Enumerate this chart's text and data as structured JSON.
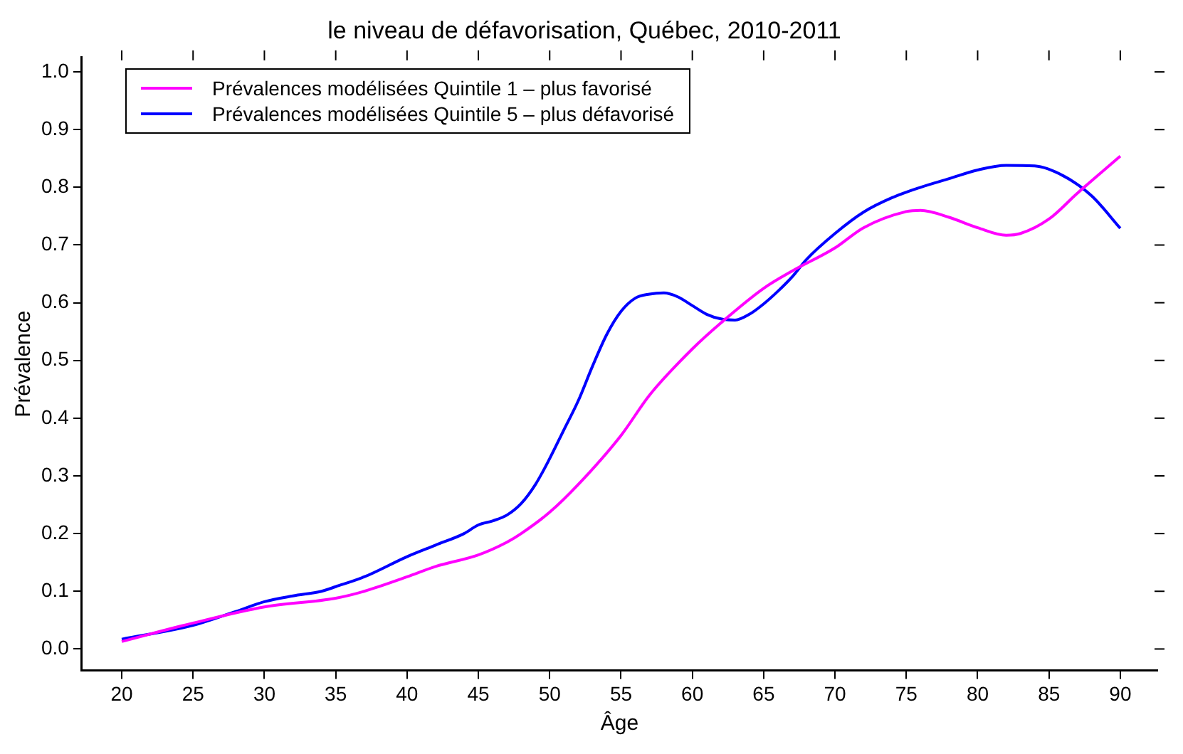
{
  "chart_data": {
    "type": "line",
    "title": "le niveau de défavorisation, Québec, 2010-2011",
    "xlabel": "Âge",
    "ylabel": "Prévalence",
    "xlim": [
      17.2,
      92.6
    ],
    "xticks": [
      20,
      25,
      30,
      35,
      40,
      45,
      50,
      55,
      60,
      65,
      70,
      75,
      80,
      85,
      90
    ],
    "ylim": [
      -0.037,
      1.025
    ],
    "yticks": [
      {
        "value": 0,
        "label": "0.0"
      },
      0.1,
      0.2,
      0.3,
      0.4,
      0.5,
      0.6,
      0.7,
      0.8,
      0.9,
      {
        "value": 1,
        "label": "1.0"
      }
    ],
    "grid": false,
    "legend": "top left",
    "marker": "none",
    "line_style": "solid",
    "series": [
      {
        "name": "Prévalences modélisées Quintile 1 – plus favorisé",
        "color": "#ff00ff",
        "x": [
          20,
          25,
          30,
          35,
          37,
          40,
          42,
          45,
          47,
          48,
          50,
          52,
          55,
          57,
          60,
          62,
          65,
          67,
          70,
          72,
          75,
          76,
          78,
          80,
          82,
          83,
          85,
          87,
          90
        ],
        "values": [
          0.013,
          0.045,
          0.073,
          0.088,
          0.1,
          0.125,
          0.143,
          0.163,
          0.185,
          0.2,
          0.237,
          0.285,
          0.37,
          0.44,
          0.52,
          0.565,
          0.625,
          0.655,
          0.695,
          0.73,
          0.758,
          0.76,
          0.748,
          0.73,
          0.717,
          0.72,
          0.745,
          0.79,
          0.854
        ]
      },
      {
        "name": "Prévalences modélisées Quintile 5 – plus défavorisé",
        "color": "#0000ff",
        "x": [
          20,
          25,
          28,
          30,
          32,
          34,
          35,
          37,
          40,
          42,
          44,
          45,
          46,
          47,
          48,
          49,
          50,
          51,
          52,
          53,
          54,
          55,
          56,
          57,
          58,
          59,
          60,
          61,
          62,
          63,
          64,
          65,
          66,
          67,
          68,
          70,
          72,
          74,
          76,
          78,
          80,
          82,
          84,
          86,
          88,
          90
        ],
        "values": [
          0.017,
          0.041,
          0.065,
          0.082,
          0.092,
          0.1,
          0.108,
          0.125,
          0.16,
          0.18,
          0.2,
          0.215,
          0.222,
          0.232,
          0.252,
          0.285,
          0.33,
          0.38,
          0.43,
          0.49,
          0.545,
          0.585,
          0.608,
          0.615,
          0.617,
          0.61,
          0.595,
          0.58,
          0.572,
          0.57,
          0.58,
          0.598,
          0.62,
          0.645,
          0.675,
          0.72,
          0.757,
          0.782,
          0.8,
          0.815,
          0.83,
          0.838,
          0.837,
          0.82,
          0.785,
          0.729
        ]
      }
    ]
  }
}
